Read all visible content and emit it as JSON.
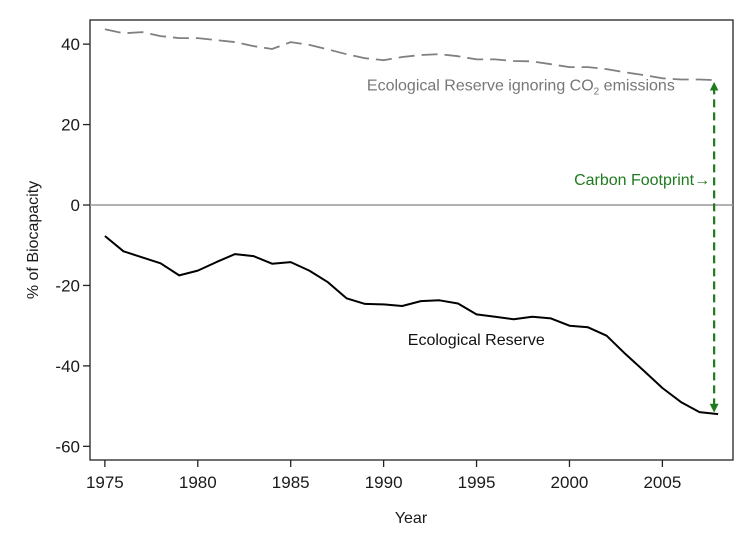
{
  "chart_data": {
    "type": "line",
    "title": "",
    "xlabel": "Year",
    "ylabel": "% of Biocapacity",
    "xlim": [
      1974.2,
      2008.8
    ],
    "ylim": [
      -63.4,
      46.0
    ],
    "xticks": [
      1975,
      1980,
      1985,
      1990,
      1995,
      2000,
      2005
    ],
    "xtick_labels": [
      "1975",
      "1980",
      "1985",
      "1990",
      "1995",
      "2000",
      "2005"
    ],
    "yticks": [
      40,
      20,
      0,
      -20,
      -40,
      -60
    ],
    "ytick_labels": [
      "40",
      "20",
      "0",
      "-20",
      "-40",
      "-60"
    ],
    "grid": false,
    "reference_line": {
      "y": 0,
      "color": "#999999"
    },
    "x": [
      1975,
      1976,
      1977,
      1978,
      1979,
      1980,
      1981,
      1982,
      1983,
      1984,
      1985,
      1986,
      1987,
      1988,
      1989,
      1990,
      1991,
      1992,
      1993,
      1994,
      1995,
      1996,
      1997,
      1998,
      1999,
      2000,
      2001,
      2002,
      2003,
      2004,
      2005,
      2006,
      2007,
      2008
    ],
    "series": [
      {
        "name": "Ecological Reserve ignoring CO2 emissions",
        "label_text": "Ecological Reserve ignoring CO",
        "label_sub": "2",
        "label_suffix": " emissions",
        "style": "dashed",
        "color": "#808080",
        "values": [
          43.7,
          42.7,
          43.0,
          42.0,
          41.5,
          41.5,
          41.0,
          40.5,
          39.5,
          38.8,
          40.5,
          39.8,
          38.7,
          37.5,
          36.5,
          36.0,
          36.8,
          37.3,
          37.5,
          37.0,
          36.2,
          36.2,
          35.8,
          35.7,
          35.0,
          34.3,
          34.3,
          33.8,
          33.0,
          32.3,
          31.5,
          31.2,
          31.2,
          31.0
        ]
      },
      {
        "name": "Ecological Reserve",
        "label_text": "Ecological Reserve",
        "style": "solid",
        "color": "#000000",
        "values": [
          -7.7,
          -11.5,
          -13.0,
          -14.5,
          -17.5,
          -16.3,
          -14.2,
          -12.2,
          -12.7,
          -14.6,
          -14.2,
          -16.3,
          -19.2,
          -23.2,
          -24.6,
          -24.7,
          -25.1,
          -23.9,
          -23.7,
          -24.5,
          -27.2,
          -27.8,
          -28.4,
          -27.8,
          -28.2,
          -30.0,
          -30.4,
          -32.5,
          -37.0,
          -41.2,
          -45.5,
          -49.0,
          -51.5,
          -52.0
        ]
      }
    ],
    "annotations": [
      {
        "name": "carbon-footprint",
        "text": "Carbon Footprint",
        "arrow_glyph": "→",
        "color": "#1e7b1e",
        "x": 2008,
        "y_from": 31.0,
        "y_to": -52.0,
        "style": "dashed-double-arrow"
      }
    ]
  }
}
